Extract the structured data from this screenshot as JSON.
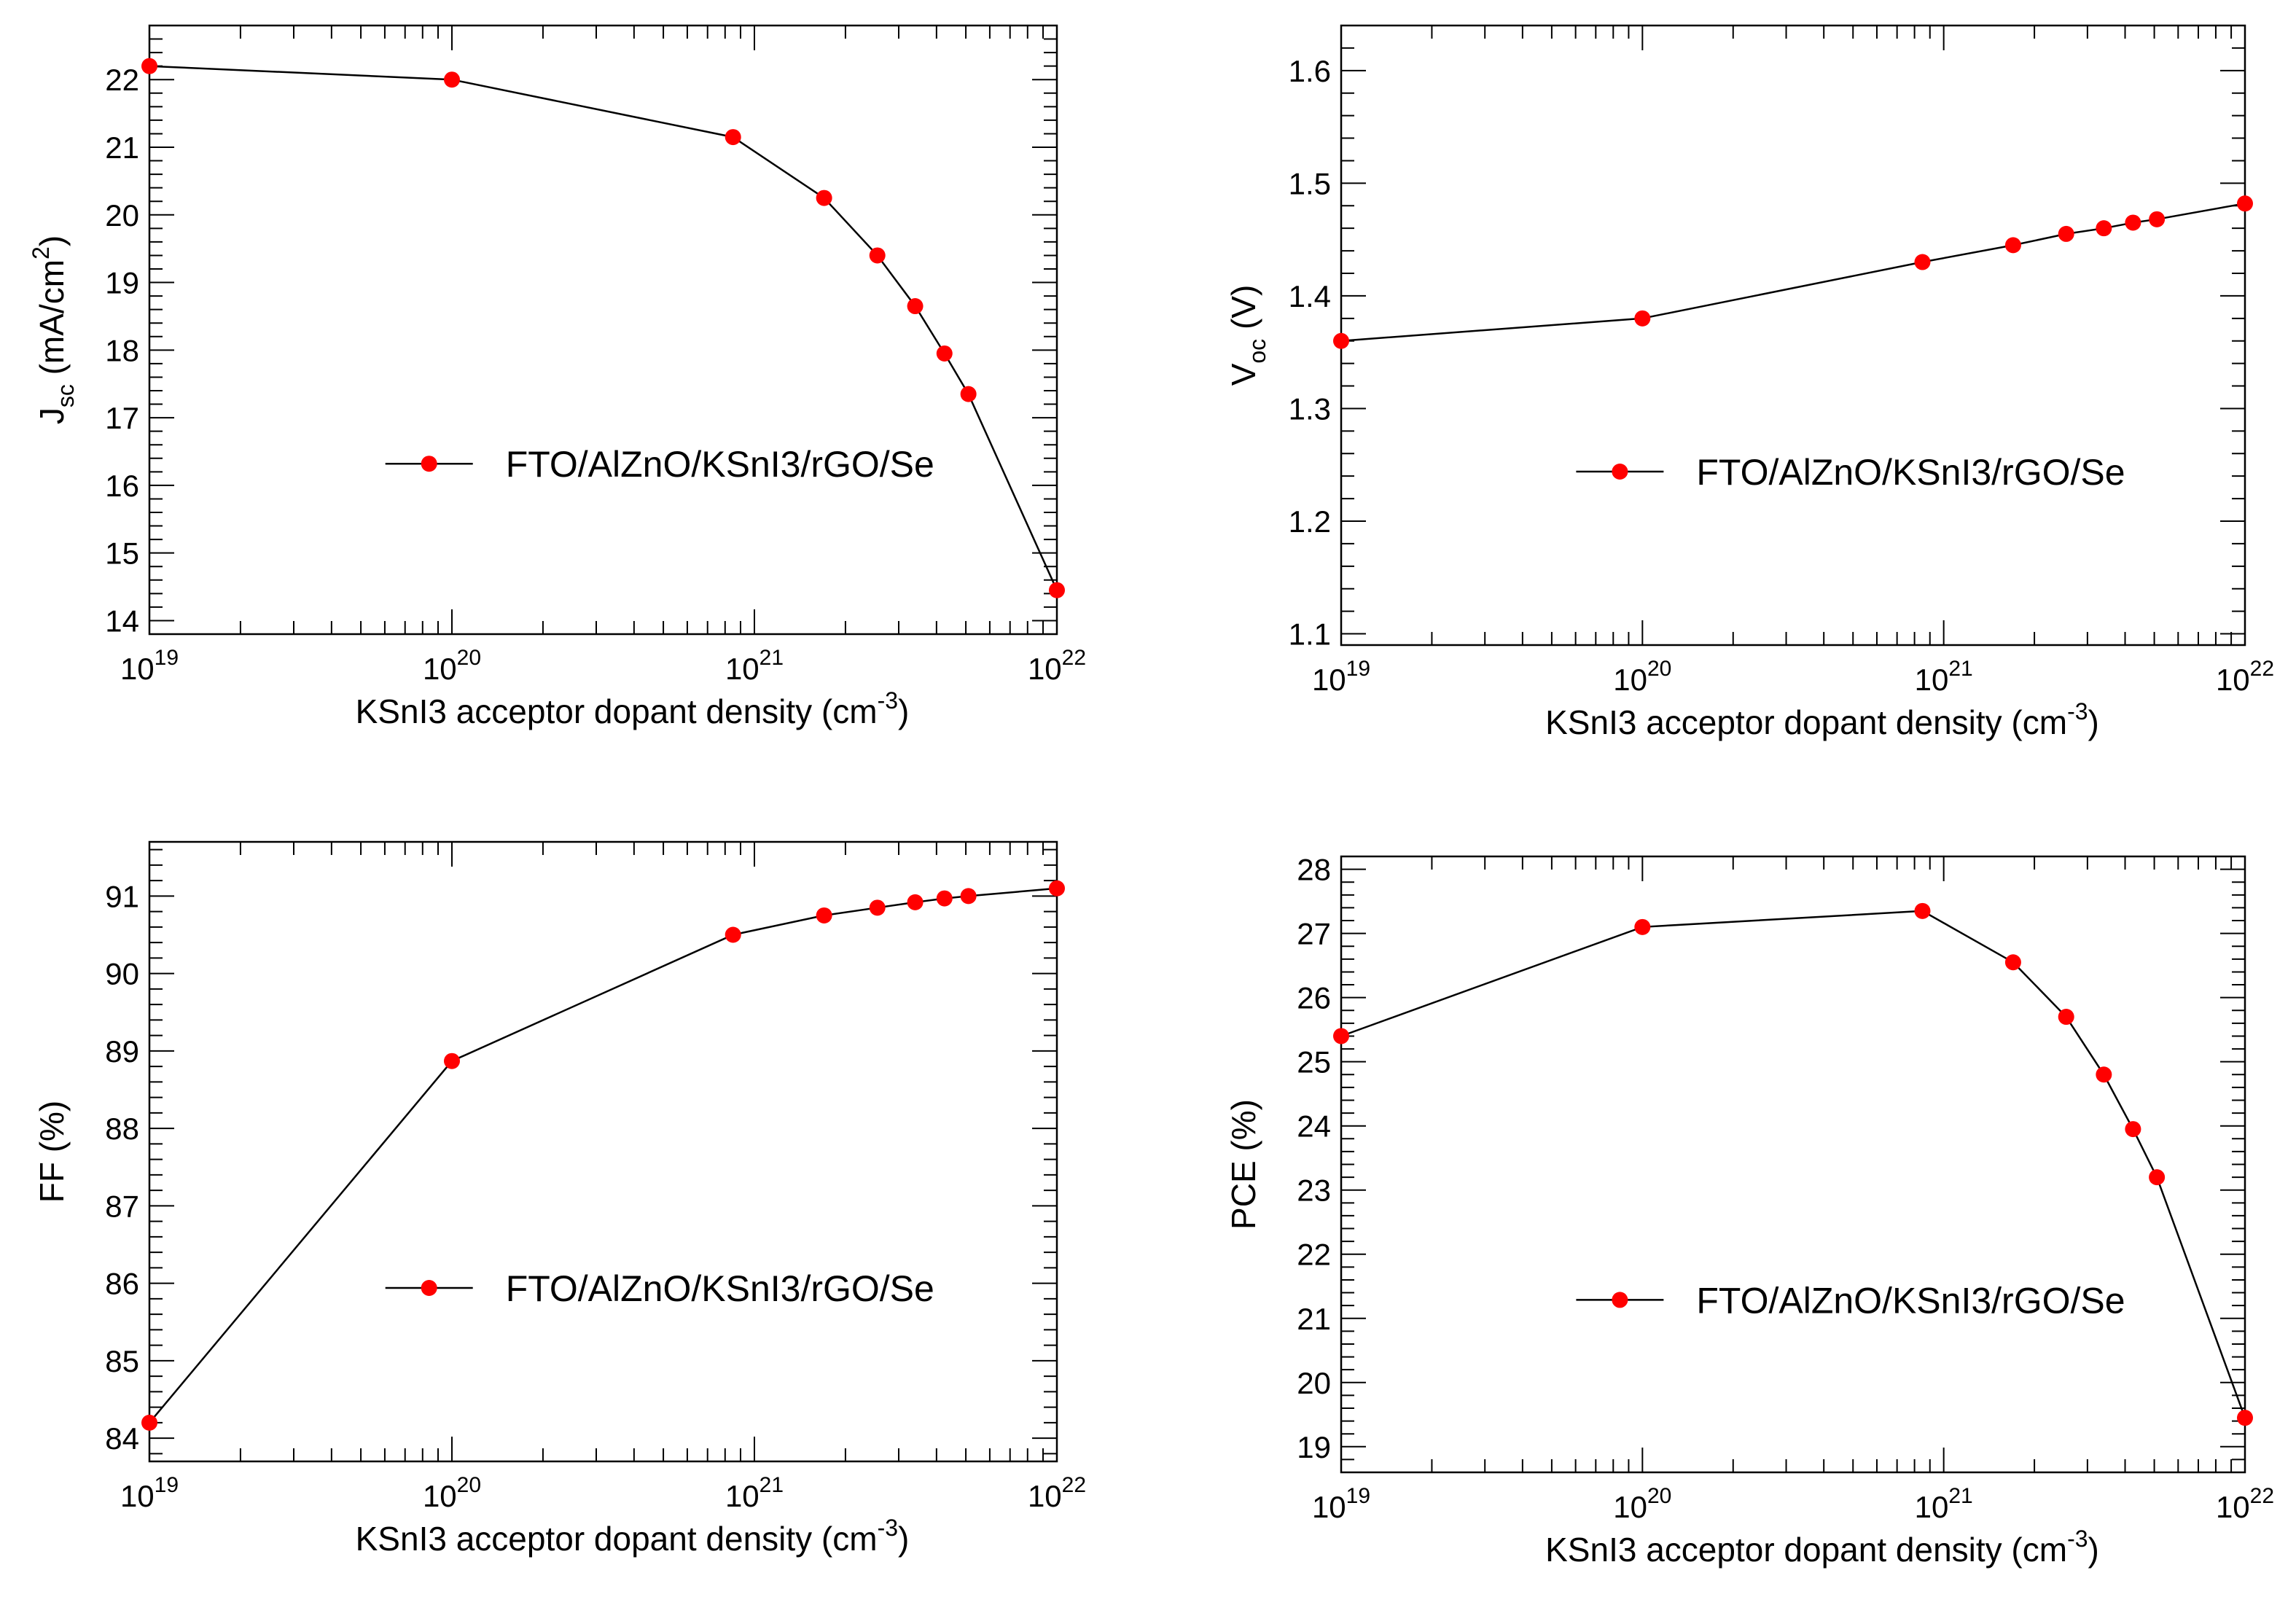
{
  "colors": {
    "marker": "#ff0000",
    "line": "#000000",
    "axes": "#000000",
    "background": "#ffffff"
  },
  "chart_data": [
    {
      "id": "jsc",
      "type": "line",
      "x_scale": "log",
      "xlim": [
        1e+19,
        1e+22
      ],
      "ylim": [
        13.8,
        22.8
      ],
      "x_ticks": [
        1e+19,
        1e+20,
        1e+21,
        1e+22
      ],
      "x_tick_exponents": [
        "19",
        "20",
        "21",
        "22"
      ],
      "x_tick_base": "10",
      "y_ticks": [
        14,
        15,
        16,
        17,
        18,
        19,
        20,
        21,
        22
      ],
      "y_tick_labels": [
        "14",
        "15",
        "16",
        "17",
        "18",
        "19",
        "20",
        "21",
        "22"
      ],
      "xlabel_main": "KSnI3 acceptor dopant density (cm",
      "xlabel_sup": "-3",
      "xlabel_close": ")",
      "ylabel_main": "J",
      "ylabel_sub": "sc",
      "ylabel_rest": " (mA/cm",
      "ylabel_sup": "2",
      "ylabel_close": ")",
      "legend": "FTO/AlZnO/KSnI3/rGO/Se",
      "legend_position": "lower-right",
      "grid": false,
      "series": [
        {
          "name": "FTO/AlZnO/KSnI3/rGO/Se",
          "x": [
            1e+19,
            1e+20,
            8.5e+20,
            1.7e+21,
            2.55e+21,
            3.4e+21,
            4.25e+21,
            5.1e+21,
            1e+22
          ],
          "y": [
            22.2,
            22.0,
            21.15,
            20.25,
            19.4,
            18.65,
            17.95,
            17.35,
            14.45
          ]
        }
      ]
    },
    {
      "id": "voc",
      "type": "line",
      "x_scale": "log",
      "xlim": [
        1e+19,
        1e+22
      ],
      "ylim": [
        1.09,
        1.64
      ],
      "x_ticks": [
        1e+19,
        1e+20,
        1e+21,
        1e+22
      ],
      "x_tick_exponents": [
        "19",
        "20",
        "21",
        "22"
      ],
      "x_tick_base": "10",
      "y_ticks": [
        1.1,
        1.2,
        1.3,
        1.4,
        1.5,
        1.6
      ],
      "y_tick_labels": [
        "1.1",
        "1.2",
        "1.3",
        "1.4",
        "1.5",
        "1.6"
      ],
      "xlabel_main": "KSnI3 acceptor dopant density (cm",
      "xlabel_sup": "-3",
      "xlabel_close": ")",
      "ylabel_main": "V",
      "ylabel_sub": "oc",
      "ylabel_rest": " (V)",
      "ylabel_sup": "",
      "ylabel_close": "",
      "legend": "FTO/AlZnO/KSnI3/rGO/Se",
      "legend_position": "lower-right",
      "grid": false,
      "series": [
        {
          "name": "FTO/AlZnO/KSnI3/rGO/Se",
          "x": [
            1e+19,
            1e+20,
            8.5e+20,
            1.7e+21,
            2.55e+21,
            3.4e+21,
            4.25e+21,
            5.1e+21,
            1e+22
          ],
          "y": [
            1.36,
            1.38,
            1.43,
            1.445,
            1.455,
            1.46,
            1.465,
            1.468,
            1.482
          ]
        }
      ]
    },
    {
      "id": "ff",
      "type": "line",
      "x_scale": "log",
      "xlim": [
        1e+19,
        1e+22
      ],
      "ylim": [
        83.7,
        91.7
      ],
      "x_ticks": [
        1e+19,
        1e+20,
        1e+21,
        1e+22
      ],
      "x_tick_exponents": [
        "19",
        "20",
        "21",
        "22"
      ],
      "x_tick_base": "10",
      "y_ticks": [
        84,
        85,
        86,
        87,
        88,
        89,
        90,
        91
      ],
      "y_tick_labels": [
        "84",
        "85",
        "86",
        "87",
        "88",
        "89",
        "90",
        "91"
      ],
      "xlabel_main": "KSnI3 acceptor dopant density (cm",
      "xlabel_sup": "-3",
      "xlabel_close": ")",
      "ylabel_main": "FF (%)",
      "ylabel_sub": "",
      "ylabel_rest": "",
      "ylabel_sup": "",
      "ylabel_close": "",
      "legend": "FTO/AlZnO/KSnI3/rGO/Se",
      "legend_position": "lower-right",
      "grid": false,
      "series": [
        {
          "name": "FTO/AlZnO/KSnI3/rGO/Se",
          "x": [
            1e+19,
            1e+20,
            8.5e+20,
            1.7e+21,
            2.55e+21,
            3.4e+21,
            4.25e+21,
            5.1e+21,
            1e+22
          ],
          "y": [
            84.2,
            88.87,
            90.5,
            90.75,
            90.85,
            90.92,
            90.97,
            91.0,
            91.1
          ]
        }
      ]
    },
    {
      "id": "pce",
      "type": "line",
      "x_scale": "log",
      "xlim": [
        1e+19,
        1e+22
      ],
      "ylim": [
        18.6,
        28.2
      ],
      "x_ticks": [
        1e+19,
        1e+20,
        1e+21,
        1e+22
      ],
      "x_tick_exponents": [
        "19",
        "20",
        "21",
        "22"
      ],
      "x_tick_base": "10",
      "y_ticks": [
        19,
        20,
        21,
        22,
        23,
        24,
        25,
        26,
        27,
        28
      ],
      "y_tick_labels": [
        "19",
        "20",
        "21",
        "22",
        "23",
        "24",
        "25",
        "26",
        "27",
        "28"
      ],
      "xlabel_main": "KSnI3 acceptor dopant density (cm",
      "xlabel_sup": "-3",
      "xlabel_close": ")",
      "ylabel_main": "PCE (%)",
      "ylabel_sub": "",
      "ylabel_rest": "",
      "ylabel_sup": "",
      "ylabel_close": "",
      "legend": "FTO/AlZnO/KSnI3/rGO/Se",
      "legend_position": "lower-right",
      "grid": false,
      "series": [
        {
          "name": "FTO/AlZnO/KSnI3/rGO/Se",
          "x": [
            1e+19,
            1e+20,
            8.5e+20,
            1.7e+21,
            2.55e+21,
            3.4e+21,
            4.25e+21,
            5.1e+21,
            1e+22
          ],
          "y": [
            25.4,
            27.1,
            27.35,
            26.55,
            25.7,
            24.8,
            23.95,
            23.2,
            19.45
          ]
        }
      ]
    }
  ]
}
